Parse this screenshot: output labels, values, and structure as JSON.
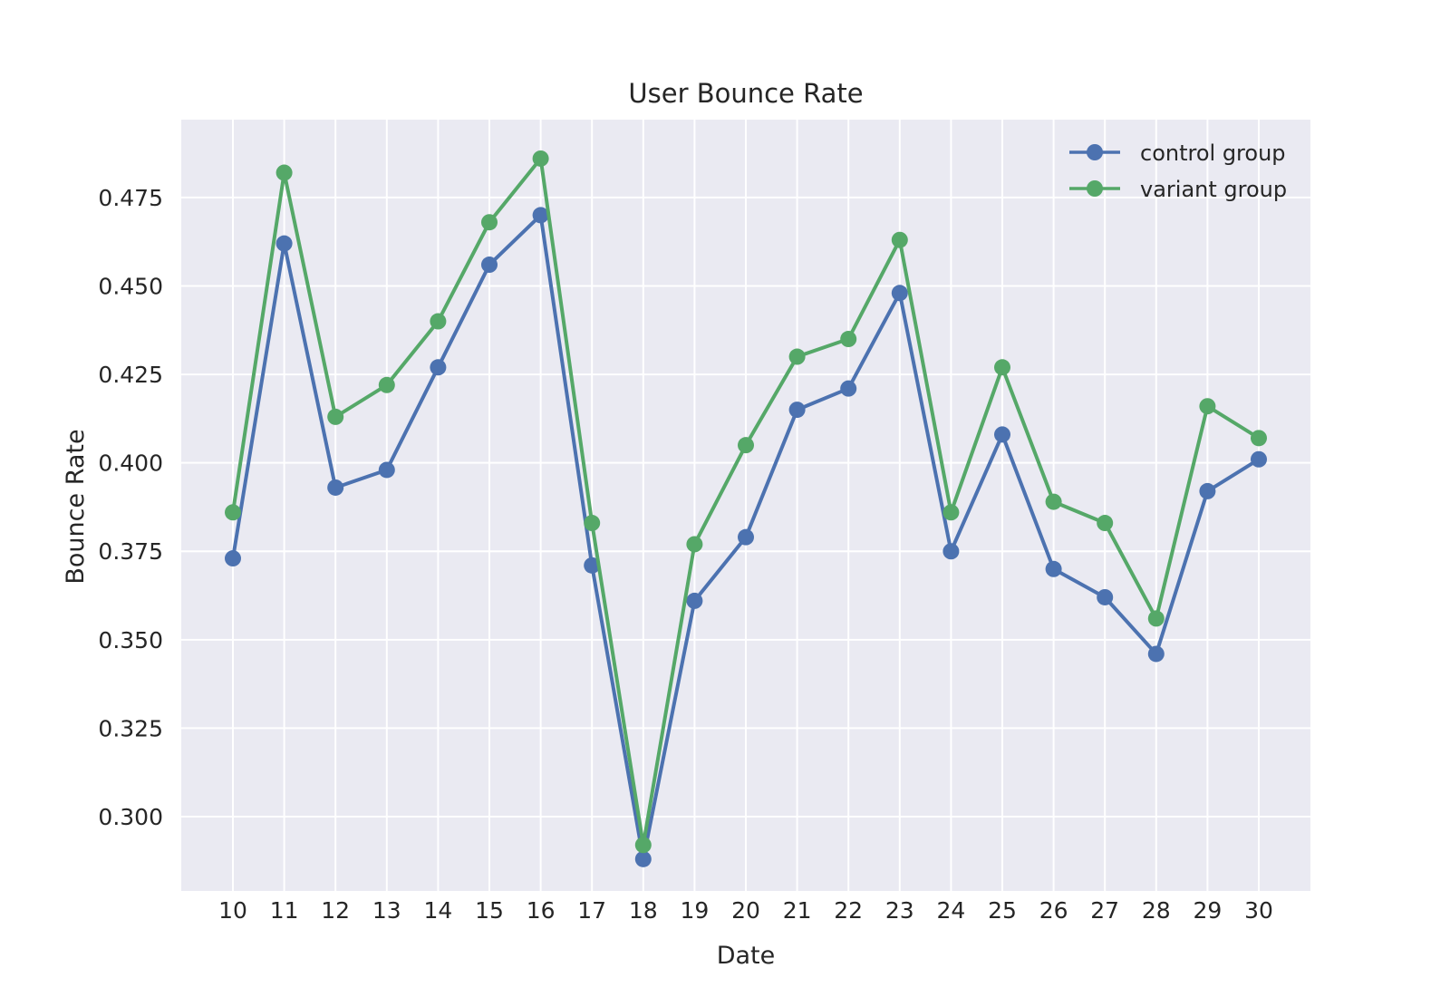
{
  "chart_data": {
    "type": "line",
    "title": "User Bounce Rate",
    "xlabel": "Date",
    "ylabel": "Bounce Rate",
    "x": [
      10,
      11,
      12,
      13,
      14,
      15,
      16,
      17,
      18,
      19,
      20,
      21,
      22,
      23,
      24,
      25,
      26,
      27,
      28,
      29,
      30
    ],
    "ylim": [
      0.279,
      0.497
    ],
    "yticks": [
      0.3,
      0.325,
      0.35,
      0.375,
      0.4,
      0.425,
      0.45,
      0.475
    ],
    "ytick_labels": [
      "0.300",
      "0.325",
      "0.350",
      "0.375",
      "0.400",
      "0.425",
      "0.450",
      "0.475"
    ],
    "grid": true,
    "legend_position": "top-right",
    "series": [
      {
        "name": "control group",
        "color": "#4C72B0",
        "marker": "circle",
        "values": [
          0.373,
          0.462,
          0.393,
          0.398,
          0.427,
          0.456,
          0.47,
          0.371,
          0.288,
          0.361,
          0.379,
          0.415,
          0.421,
          0.448,
          0.375,
          0.408,
          0.37,
          0.362,
          0.346,
          0.392,
          0.401
        ]
      },
      {
        "name": "variant group",
        "color": "#55A868",
        "marker": "circle",
        "values": [
          0.386,
          0.482,
          0.413,
          0.422,
          0.44,
          0.468,
          0.486,
          0.383,
          0.292,
          0.377,
          0.405,
          0.43,
          0.435,
          0.463,
          0.386,
          0.427,
          0.389,
          0.383,
          0.356,
          0.416,
          0.407
        ]
      }
    ],
    "style": {
      "background": "#ffffff",
      "plot_background": "#EAEAF2",
      "grid_color": "#ffffff",
      "text_color": "#262626"
    }
  }
}
